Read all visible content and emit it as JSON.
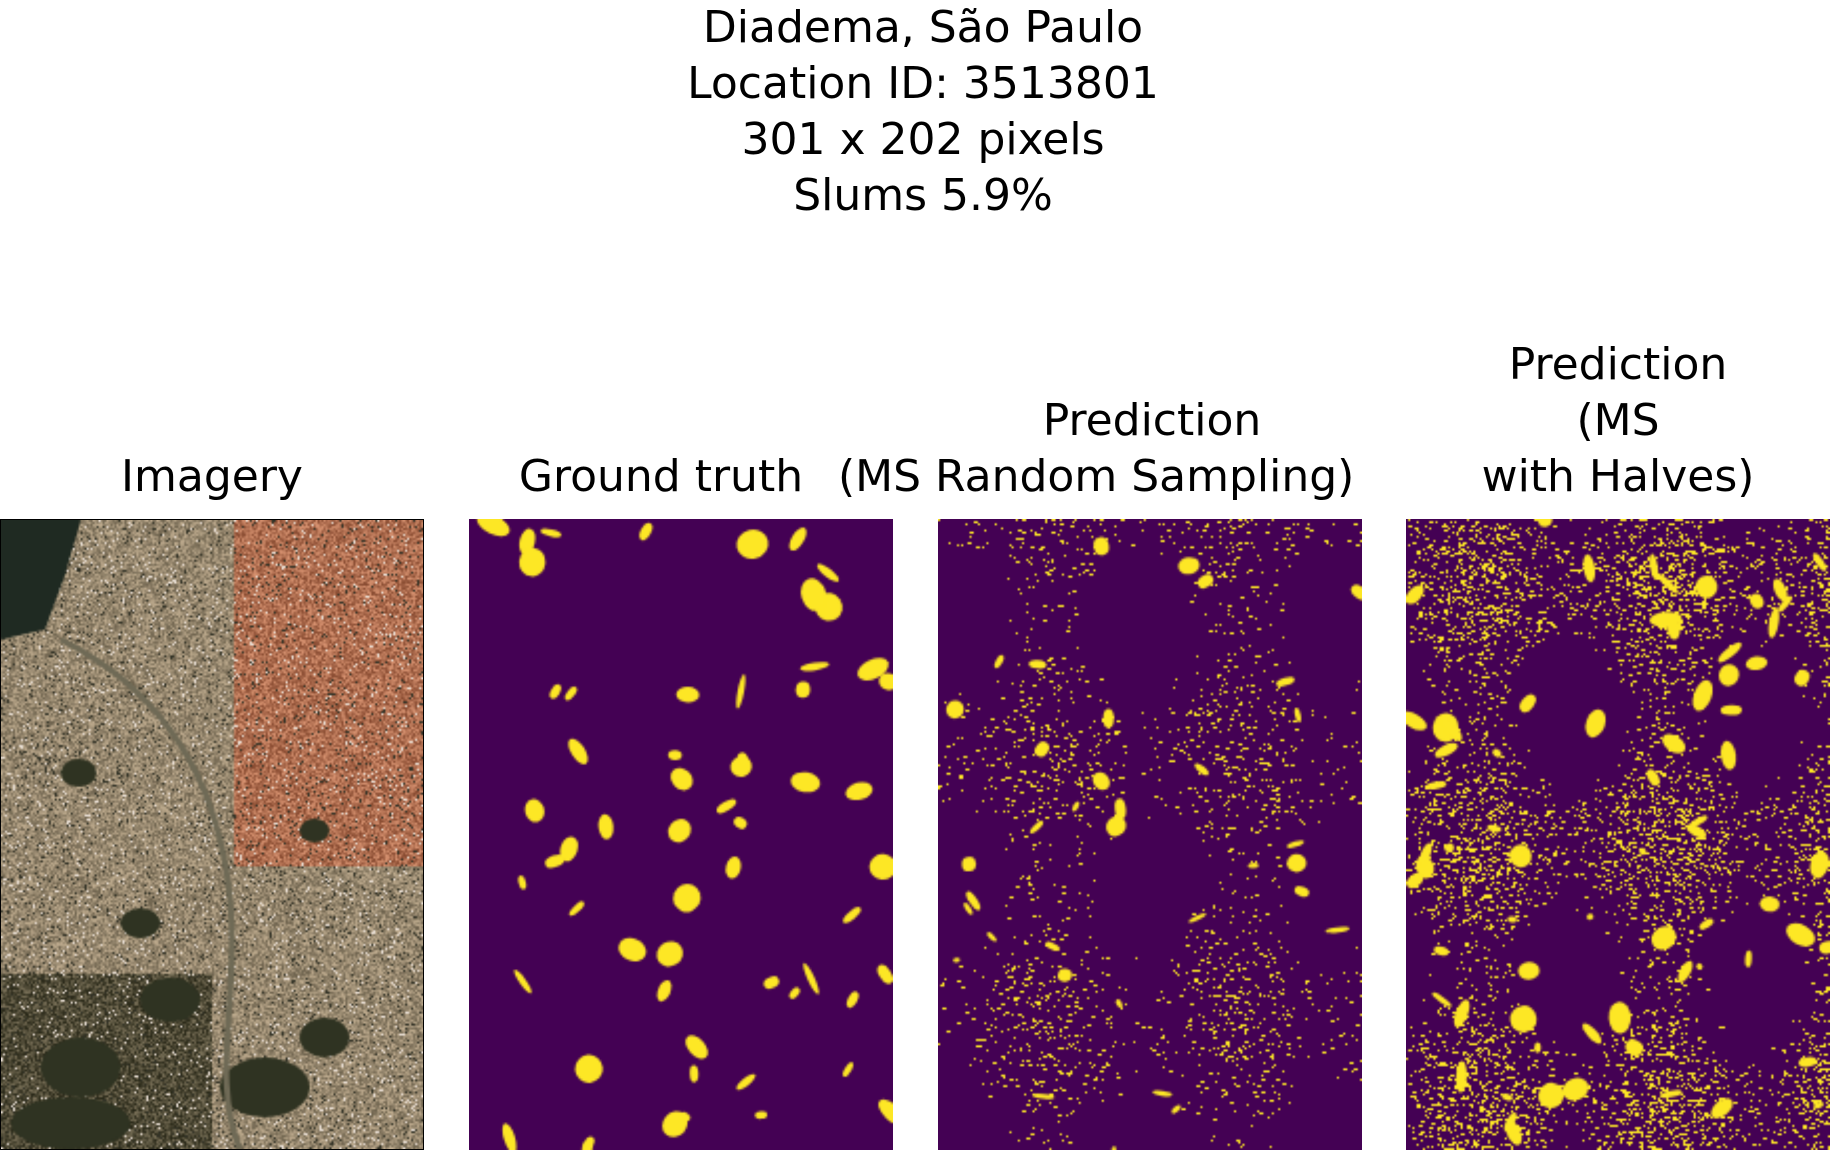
{
  "figure": {
    "title_lines": [
      "Diadema, São Paulo",
      "Location ID: 3513801",
      "301 x 202 pixels",
      "Slums 5.9%"
    ]
  },
  "panels": [
    {
      "id": "imagery",
      "title_lines": [
        "Imagery"
      ],
      "kind": "satellite-rgb"
    },
    {
      "id": "ground-truth",
      "title_lines": [
        "Ground truth"
      ],
      "kind": "binary-mask"
    },
    {
      "id": "prediction-random",
      "title_lines": [
        "Prediction",
        "(MS Random Sampling)"
      ],
      "kind": "binary-mask"
    },
    {
      "id": "prediction-halves",
      "title_lines": [
        "Prediction",
        "(MS",
        "with Halves)"
      ],
      "kind": "binary-mask"
    }
  ],
  "colors": {
    "mask_background": "#440154",
    "mask_foreground": "#fde725",
    "mask_edge": "#35b779",
    "imagery_base": "#9a8a6e",
    "imagery_roof": "#b4684a",
    "imagery_vegetation": "#2f3322",
    "imagery_water": "#1f2a22"
  }
}
